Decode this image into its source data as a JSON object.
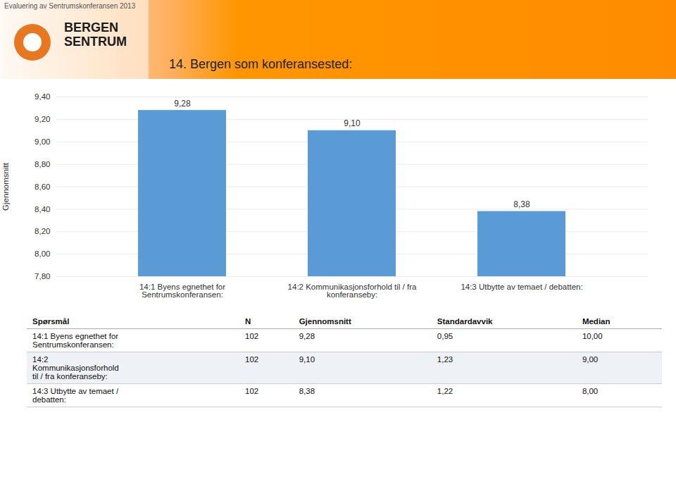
{
  "chart_data": {
    "type": "bar",
    "title": "14. Bergen som konferansested:",
    "annotations": [
      "Evaluering av Sentrumskonferansen 2013",
      "BERGEN\nSENTRUM"
    ],
    "categories": [
      "14:1 Byens egnethet for\nSentrumskonferansen:",
      "14:2 Kommunikasjonsforhold til / fra\nkonferanseby:",
      "14:3 Utbytte av temaet / debatten:"
    ],
    "values": [
      9.28,
      9.1,
      8.38
    ],
    "value_labels": [
      "9,28",
      "9,10",
      "8,38"
    ],
    "data_labels": true,
    "color": "#5B9BD5",
    "ylabel": "Gjennomsnitt",
    "ylim": [
      7.8,
      9.4
    ],
    "yticks": [
      {
        "value": 7.8,
        "label": "7,80"
      },
      {
        "value": 8.0,
        "label": "8,00"
      },
      {
        "value": 8.2,
        "label": "8,20"
      },
      {
        "value": 8.4,
        "label": "8,40"
      },
      {
        "value": 8.6,
        "label": "8,60"
      },
      {
        "value": 8.8,
        "label": "8,80"
      },
      {
        "value": 9.0,
        "label": "9,00"
      },
      {
        "value": 9.2,
        "label": "9,20"
      },
      {
        "value": 9.4,
        "label": "9,40"
      }
    ],
    "grid": true,
    "table": {
      "headers": [
        "Spørsmål",
        "N",
        "Gjennomsnitt",
        "Standardavvik",
        "Median"
      ],
      "rows": [
        [
          "14:1 Byens egnethet for\nSentrumskonferansen:",
          "102",
          "9,28",
          "0,95",
          "10,00"
        ],
        [
          "14:2\nKommunikasjonsforhold\ntil / fra konferanseby:",
          "102",
          "9,10",
          "1,23",
          "9,00"
        ],
        [
          "14:3 Utbytte av temaet /\ndebatten:",
          "102",
          "8,38",
          "1,22",
          "8,00"
        ]
      ]
    }
  }
}
